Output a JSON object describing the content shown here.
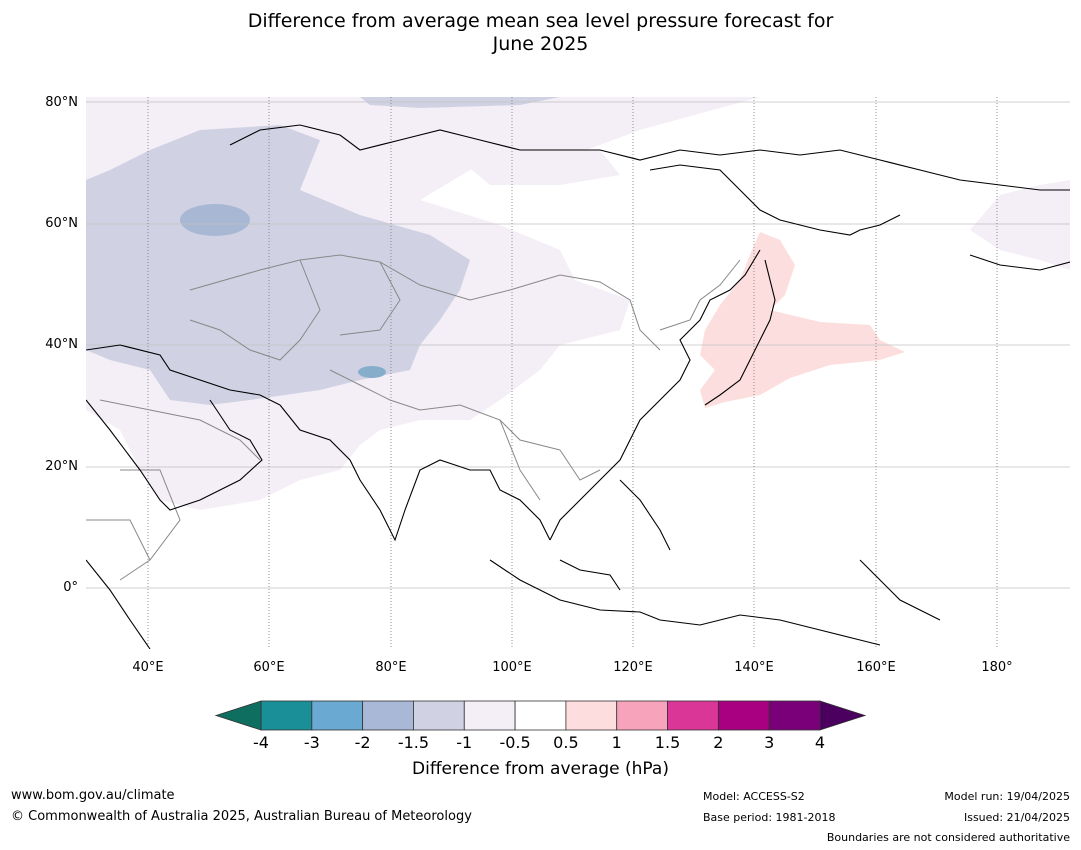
{
  "title_line1": "Difference from average mean sea level pressure forecast for",
  "title_line2": "June 2025",
  "map": {
    "latitude_labels": [
      "80°N",
      "60°N",
      "40°N",
      "20°N",
      "0°"
    ],
    "longitude_labels": [
      "40°E",
      "60°E",
      "80°E",
      "100°E",
      "120°E",
      "140°E",
      "160°E",
      "180°"
    ],
    "land_fill": "#ffffff",
    "coastline_color": "#000000",
    "border_color": "#888888",
    "gridline_color": "#bbbbbb",
    "anomaly_regions": [
      {
        "description_color": "#f4eef6",
        "level": "-1 to -0.5"
      },
      {
        "description_color": "#d0d2e4",
        "level": "-1.5 to -1"
      },
      {
        "description_color": "#a8b8d4",
        "level": "-2 to -1.5"
      },
      {
        "description_color": "#fcdede",
        "level": "0.5 to 1"
      }
    ]
  },
  "colorbar": {
    "ticks": [
      "-4",
      "-3",
      "-2",
      "-1.5",
      "-1",
      "-0.5",
      "0.5",
      "1",
      "1.5",
      "2",
      "3",
      "4"
    ],
    "colors": [
      "#1a8f98",
      "#6aa9d2",
      "#a8b8d6",
      "#d0d2e4",
      "#f4eef6",
      "#ffffff",
      "#fdddde",
      "#f8a3bc",
      "#d93698",
      "#a90082",
      "#7a007a"
    ],
    "under_color": "#0e6e60",
    "over_color": "#4b0060",
    "label": "Difference from average (hPa)"
  },
  "footer": {
    "url": "www.bom.gov.au/climate",
    "copyright": "© Commonwealth of Australia 2025, Australian Bureau of Meteorology",
    "model": "Model: ACCESS-S2",
    "base_period": "Base period: 1981-2018",
    "model_run": "Model run: 19/04/2025",
    "issued": "Issued: 21/04/2025",
    "disclaimer": "Boundaries are not considered authoritative"
  }
}
